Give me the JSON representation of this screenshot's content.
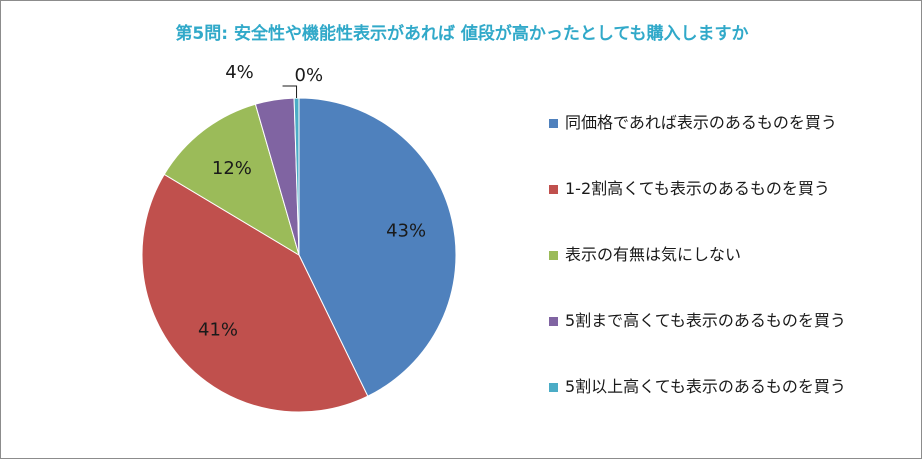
{
  "chart_data": {
    "type": "pie",
    "title": "第5問: 安全性や機能性表示があれば 値段が高かったとしても購入しますか",
    "legend_position": "right",
    "categories": [
      "同価格であれば表示のあるものを買う",
      "1-2割高くても表示のあるものを買う",
      "表示の有無は気にしない",
      "5割まで高くても表示のあるものを買う",
      "5割以上高くても表示のあるものを買う"
    ],
    "values": [
      43,
      41,
      12,
      4,
      0.5
    ],
    "data_labels": [
      "43%",
      "41%",
      "12%",
      "4%",
      "0%"
    ],
    "colors": [
      "#4f81bd",
      "#c0504d",
      "#9bbb59",
      "#8064a2",
      "#4bacc6"
    ]
  }
}
